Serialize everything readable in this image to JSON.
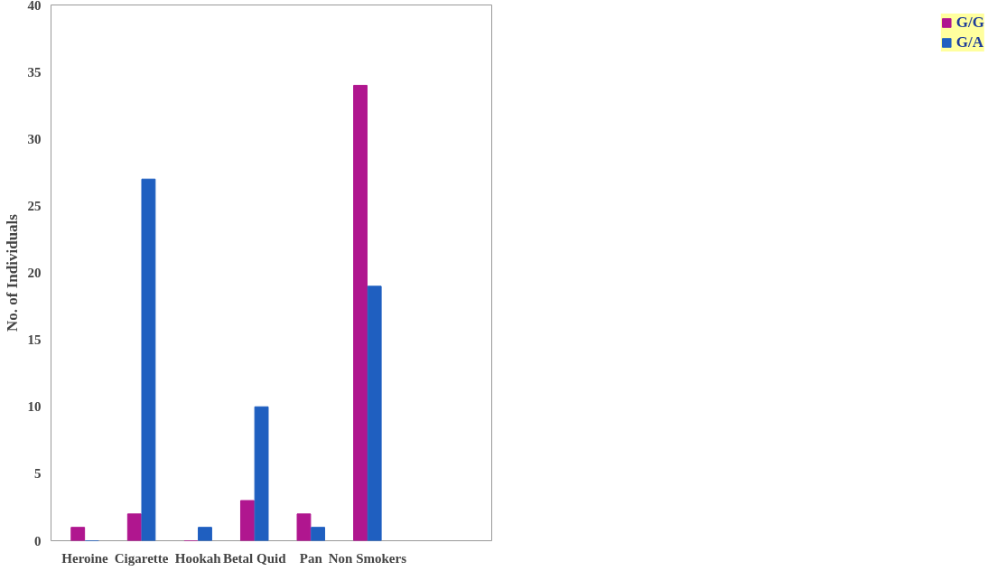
{
  "chart_data": {
    "type": "bar",
    "ylabel": "No. of Individuals",
    "categories": [
      "Heroine",
      "Cigarette",
      "Hookah",
      "Betal Quid",
      "Pan",
      "Non Smokers"
    ],
    "series": [
      {
        "name": "G/G",
        "color": "#b0168f",
        "values": [
          1,
          2,
          0,
          3,
          2,
          34
        ]
      },
      {
        "name": "G/A",
        "color": "#1f5fc0",
        "values": [
          0,
          27,
          1,
          10,
          1,
          19
        ]
      }
    ],
    "ylim": [
      0,
      40
    ],
    "yticks": [
      0,
      5,
      10,
      15,
      20,
      25,
      30,
      35,
      40
    ],
    "legend": "right"
  }
}
